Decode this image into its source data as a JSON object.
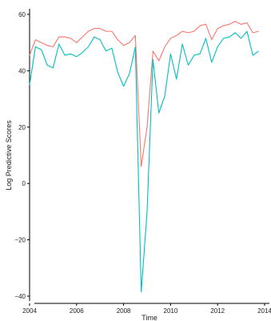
{
  "chart_data": {
    "type": "line",
    "title": "",
    "xlabel": "Time",
    "ylabel": "Log Predictive Scores",
    "xlim": [
      2004,
      2014
    ],
    "ylim": [
      -40,
      60
    ],
    "x_ticks": [
      2004,
      2006,
      2008,
      2010,
      2012,
      2014
    ],
    "y_ticks": [
      -40,
      -20,
      0,
      20,
      40,
      60
    ],
    "x_tick_labels": [
      "2004",
      "2006",
      "2008",
      "2010",
      "2012",
      "2014"
    ],
    "y_tick_labels": [
      "−40",
      "−20",
      "0",
      "20",
      "40",
      "60"
    ],
    "grid": false,
    "legend": "none",
    "x": [
      2004.0,
      2004.25,
      2004.5,
      2004.75,
      2005.0,
      2005.25,
      2005.5,
      2005.75,
      2006.0,
      2006.25,
      2006.5,
      2006.75,
      2007.0,
      2007.25,
      2007.5,
      2007.75,
      2008.0,
      2008.25,
      2008.5,
      2008.75,
      2009.0,
      2009.25,
      2009.5,
      2009.75,
      2010.0,
      2010.25,
      2010.5,
      2010.75,
      2011.0,
      2011.25,
      2011.5,
      2011.75,
      2012.0,
      2012.25,
      2012.5,
      2012.75,
      2013.0,
      2013.25,
      2013.5,
      2013.75
    ],
    "series": [
      {
        "color": "#F8766D",
        "values": [
          45.5,
          51.0,
          50.0,
          49.0,
          48.5,
          52.0,
          52.0,
          51.5,
          50.0,
          52.0,
          54.0,
          55.0,
          55.0,
          54.0,
          54.0,
          51.0,
          49.0,
          50.0,
          52.5,
          6.0,
          20.0,
          47.0,
          43.5,
          48.5,
          51.5,
          52.5,
          54.0,
          53.5,
          54.0,
          56.0,
          56.5,
          51.0,
          55.0,
          56.0,
          56.5,
          57.5,
          56.5,
          57.0,
          53.5,
          54.0
        ]
      },
      {
        "color": "#00BFC4",
        "values": [
          35.0,
          48.5,
          47.5,
          42.0,
          41.0,
          49.5,
          45.5,
          46.0,
          45.0,
          46.5,
          48.5,
          52.0,
          51.0,
          47.0,
          48.0,
          39.5,
          34.5,
          39.0,
          48.5,
          -38.5,
          -10.0,
          44.0,
          25.0,
          31.0,
          46.0,
          37.0,
          49.5,
          42.0,
          45.5,
          46.0,
          51.5,
          43.0,
          48.5,
          51.5,
          52.0,
          53.5,
          51.5,
          54.0,
          45.5,
          47.0
        ]
      }
    ]
  }
}
